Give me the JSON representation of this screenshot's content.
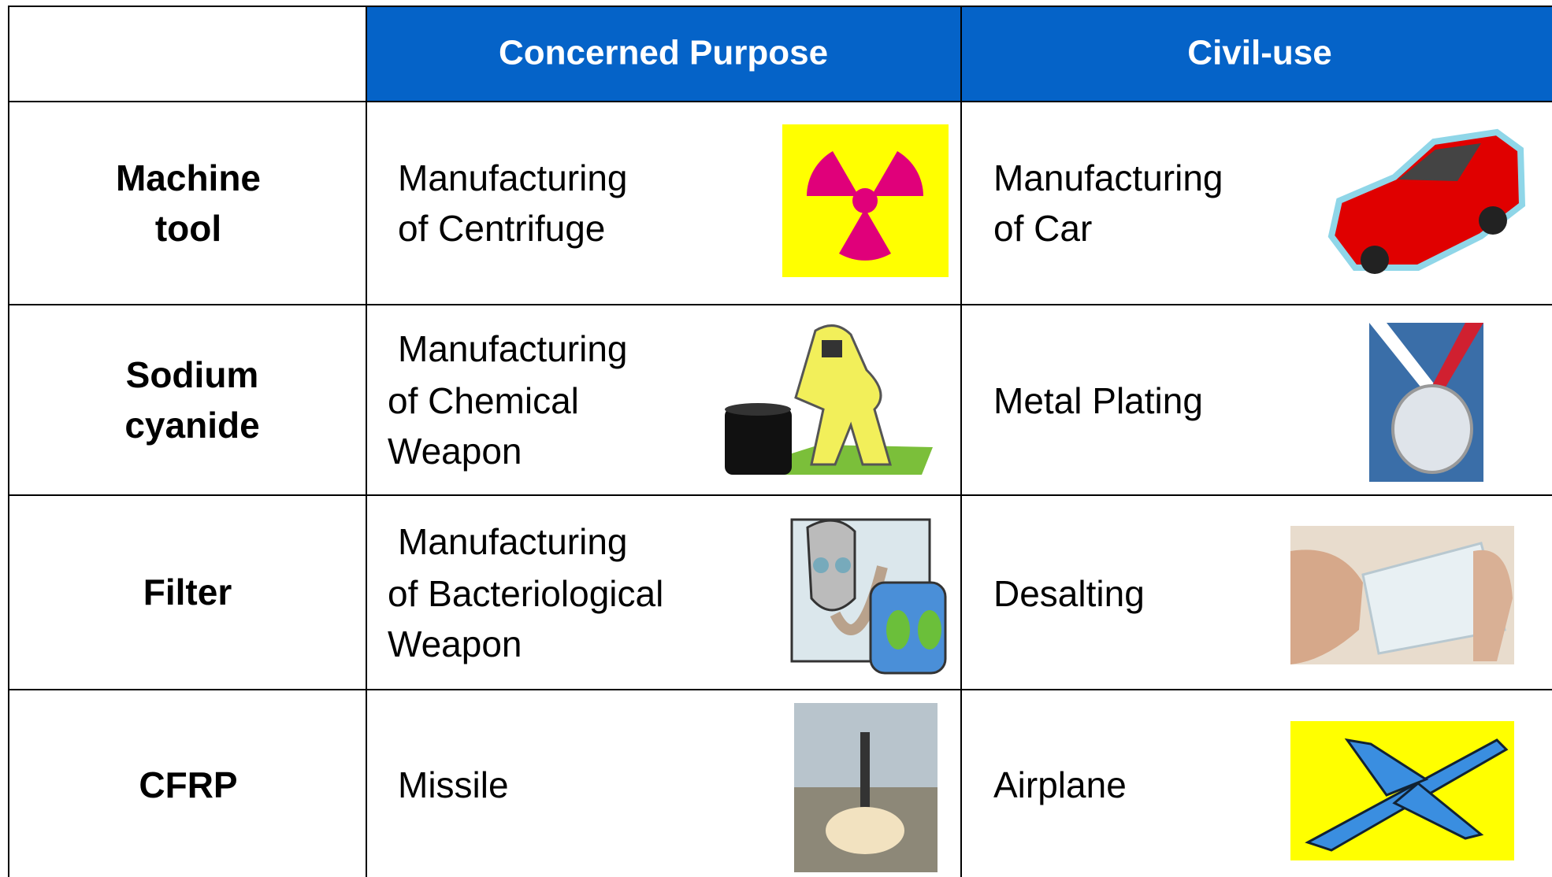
{
  "header": {
    "columns": [
      "Concerned Purpose",
      "Civil-use"
    ]
  },
  "rows": [
    {
      "item": [
        "Machine",
        "tool"
      ],
      "concerned": [
        "Manufacturing",
        "of Centrifuge"
      ],
      "civil": [
        "Manufacturing",
        "of Car"
      ]
    },
    {
      "item": [
        "Sodium",
        "cyanide"
      ],
      "concerned": [
        "Manufacturing",
        "of Chemical",
        "Weapon"
      ],
      "civil": [
        "Metal Plating"
      ]
    },
    {
      "item": [
        "Filter"
      ],
      "concerned": [
        "Manufacturing",
        "of Bacteriological",
        "Weapon"
      ],
      "civil": [
        "Desalting"
      ]
    },
    {
      "item": [
        "CFRP"
      ],
      "concerned": [
        "Missile"
      ],
      "civil": [
        "Airplane"
      ]
    }
  ]
}
